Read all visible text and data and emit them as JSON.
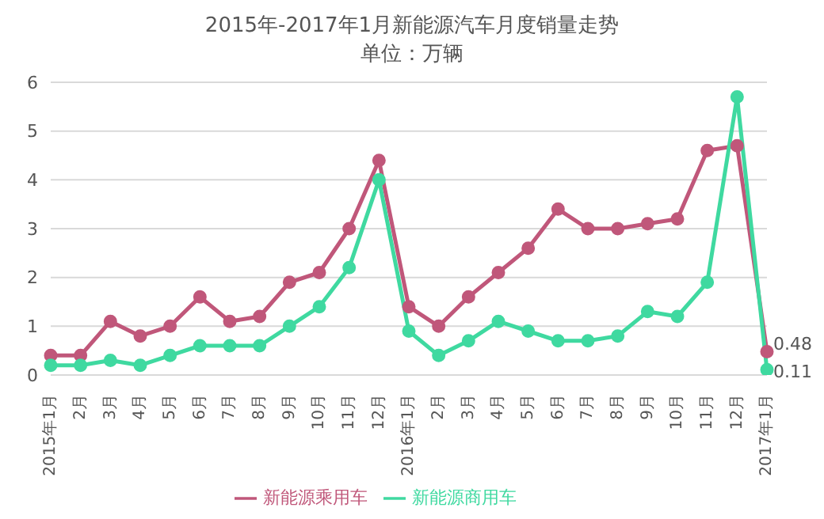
{
  "chart_data": {
    "type": "line",
    "title": "2015年-2017年1月新能源汽车月度销量走势",
    "subtitle": "单位：万辆",
    "categories": [
      "2015年1月",
      "2月",
      "3月",
      "4月",
      "5月",
      "6月",
      "7月",
      "8月",
      "9月",
      "10月",
      "11月",
      "12月",
      "2016年1月",
      "2月",
      "3月",
      "4月",
      "5月",
      "6月",
      "7月",
      "8月",
      "9月",
      "10月",
      "11月",
      "12月",
      "2017年1月"
    ],
    "series": [
      {
        "name": "新能源乘用车",
        "color": "#c0577a",
        "values": [
          0.4,
          0.4,
          1.1,
          0.8,
          1.0,
          1.6,
          1.1,
          1.2,
          1.9,
          2.1,
          3.0,
          4.4,
          1.4,
          1.0,
          1.6,
          2.1,
          2.6,
          3.4,
          3.0,
          3.0,
          3.1,
          3.2,
          4.6,
          4.7,
          0.48
        ],
        "value_labels": [
          null,
          null,
          null,
          null,
          null,
          null,
          null,
          null,
          null,
          null,
          null,
          null,
          null,
          null,
          null,
          null,
          null,
          null,
          null,
          null,
          null,
          null,
          null,
          null,
          "0.48"
        ]
      },
      {
        "name": "新能源商用车",
        "color": "#3fd9a0",
        "values": [
          0.2,
          0.2,
          0.3,
          0.2,
          0.4,
          0.6,
          0.6,
          0.6,
          1.0,
          1.4,
          2.2,
          4.0,
          0.9,
          0.4,
          0.7,
          1.1,
          0.9,
          0.7,
          0.7,
          0.8,
          1.3,
          1.2,
          1.9,
          5.7,
          0.11
        ],
        "value_labels": [
          null,
          null,
          null,
          null,
          null,
          null,
          null,
          null,
          null,
          null,
          null,
          null,
          null,
          null,
          null,
          null,
          null,
          null,
          null,
          null,
          null,
          null,
          null,
          null,
          "0.11"
        ]
      }
    ],
    "ylim": [
      0,
      6
    ],
    "yticks": [
      0,
      1,
      2,
      3,
      4,
      5,
      6
    ],
    "grid": "y",
    "legend": "bottom",
    "marker": "circle",
    "line_style": "solid"
  }
}
